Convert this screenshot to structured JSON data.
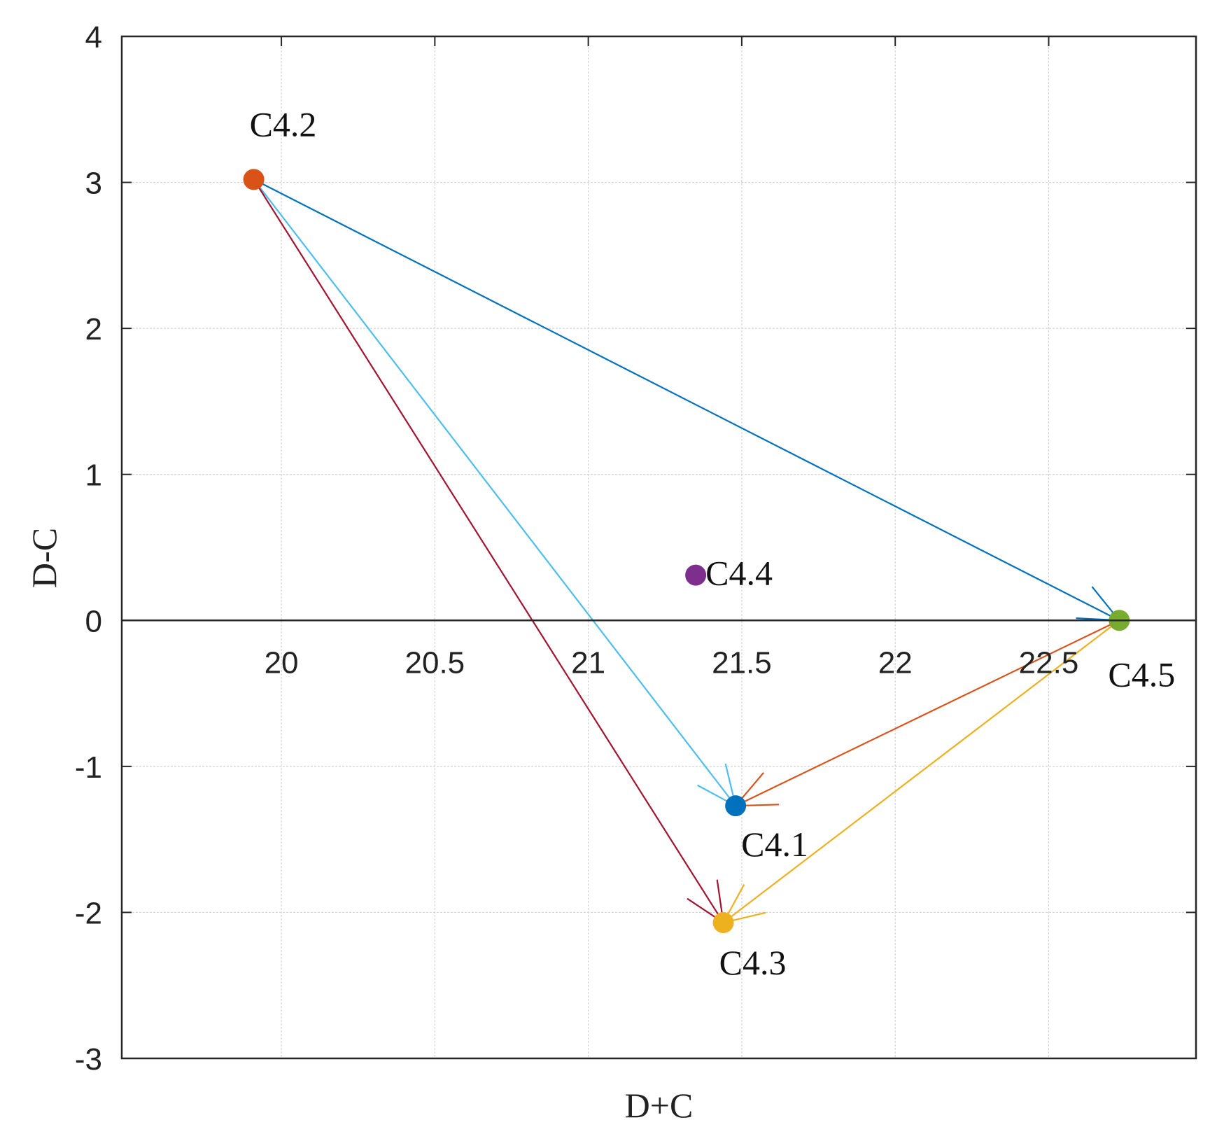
{
  "chart_data": {
    "type": "scatter",
    "title": "",
    "xlabel": "D+C",
    "ylabel": "D-C",
    "xlim": [
      19.48,
      22.98
    ],
    "ylim": [
      -3,
      4
    ],
    "xticks": [
      20,
      20.5,
      21,
      21.5,
      22,
      22.5
    ],
    "xtick_labels": [
      "20",
      "20.5",
      "21",
      "21.5",
      "22",
      "22.5"
    ],
    "yticks": [
      -3,
      -2,
      -1,
      0,
      1,
      2,
      3,
      4
    ],
    "ytick_labels": [
      "-3",
      "-2",
      "-1",
      "0",
      "1",
      "2",
      "3",
      "4"
    ],
    "grid": true,
    "points": [
      {
        "id": "C4.1",
        "label": "C4.1",
        "x": 21.48,
        "y": -1.27,
        "color": "#0072BD"
      },
      {
        "id": "C4.2",
        "label": "C4.2",
        "x": 19.91,
        "y": 3.02,
        "color": "#D95319"
      },
      {
        "id": "C4.3",
        "label": "C4.3",
        "x": 21.44,
        "y": -2.07,
        "color": "#EDB120"
      },
      {
        "id": "C4.4",
        "label": "C4.4",
        "x": 21.35,
        "y": 0.31,
        "color": "#7E2F8E"
      },
      {
        "id": "C4.5",
        "label": "C4.5",
        "x": 22.73,
        "y": 0.0,
        "color": "#77AC30"
      }
    ],
    "arrows": [
      {
        "from": "C4.2",
        "to": "C4.5",
        "color": "#0072BD"
      },
      {
        "from": "C4.2",
        "to": "C4.1",
        "color": "#4DBEEE"
      },
      {
        "from": "C4.2",
        "to": "C4.3",
        "color": "#A2142F"
      },
      {
        "from": "C4.5",
        "to": "C4.1",
        "color": "#D95319"
      },
      {
        "from": "C4.5",
        "to": "C4.3",
        "color": "#EDB120"
      }
    ]
  }
}
